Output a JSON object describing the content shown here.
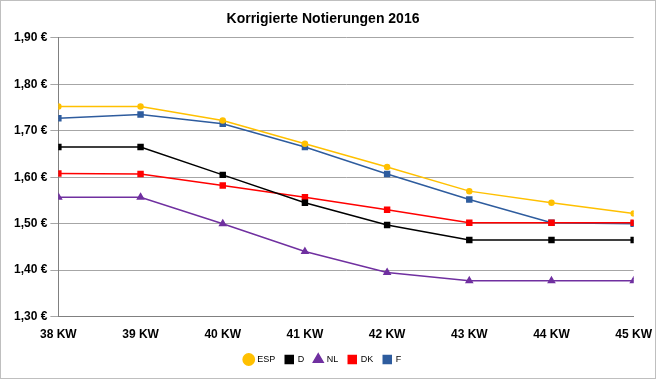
{
  "chart_data": {
    "type": "line",
    "title": "Korrigierte Notierungen 2016",
    "categories": [
      "38 KW",
      "39 KW",
      "40 KW",
      "41 KW",
      "42 KW",
      "43 KW",
      "44 KW",
      "45 KW"
    ],
    "series": [
      {
        "name": "ESP",
        "color": "#ffc000",
        "marker": "circle",
        "values": [
          1.752,
          1.752,
          1.722,
          1.672,
          1.622,
          1.57,
          1.545,
          1.522
        ]
      },
      {
        "name": "D",
        "color": "#000000",
        "marker": "square",
        "values": [
          1.665,
          1.665,
          1.605,
          1.545,
          1.497,
          1.465,
          1.465,
          1.465
        ]
      },
      {
        "name": "NL",
        "color": "#7030a0",
        "marker": "triangle",
        "values": [
          1.557,
          1.557,
          1.5,
          1.44,
          1.395,
          1.377,
          1.377,
          1.377
        ]
      },
      {
        "name": "DK",
        "color": "#ff0000",
        "marker": "square",
        "values": [
          1.608,
          1.607,
          1.582,
          1.557,
          1.53,
          1.502,
          1.502,
          1.502
        ]
      },
      {
        "name": "F",
        "color": "#2e5c9e",
        "marker": "square",
        "values": [
          1.727,
          1.735,
          1.715,
          1.665,
          1.607,
          1.552,
          1.502,
          1.5
        ]
      }
    ],
    "ylim": [
      1.3,
      1.9
    ],
    "yticks": [
      {
        "value": 1.3,
        "label": "1,30 €"
      },
      {
        "value": 1.4,
        "label": "1,40 €"
      },
      {
        "value": 1.5,
        "label": "1,50 €"
      },
      {
        "value": 1.6,
        "label": "1,60 €"
      },
      {
        "value": 1.7,
        "label": "1,70 €"
      },
      {
        "value": 1.8,
        "label": "1,80 €"
      },
      {
        "value": 1.9,
        "label": "1,90 €"
      }
    ],
    "grid": true,
    "legend": "bottom"
  }
}
